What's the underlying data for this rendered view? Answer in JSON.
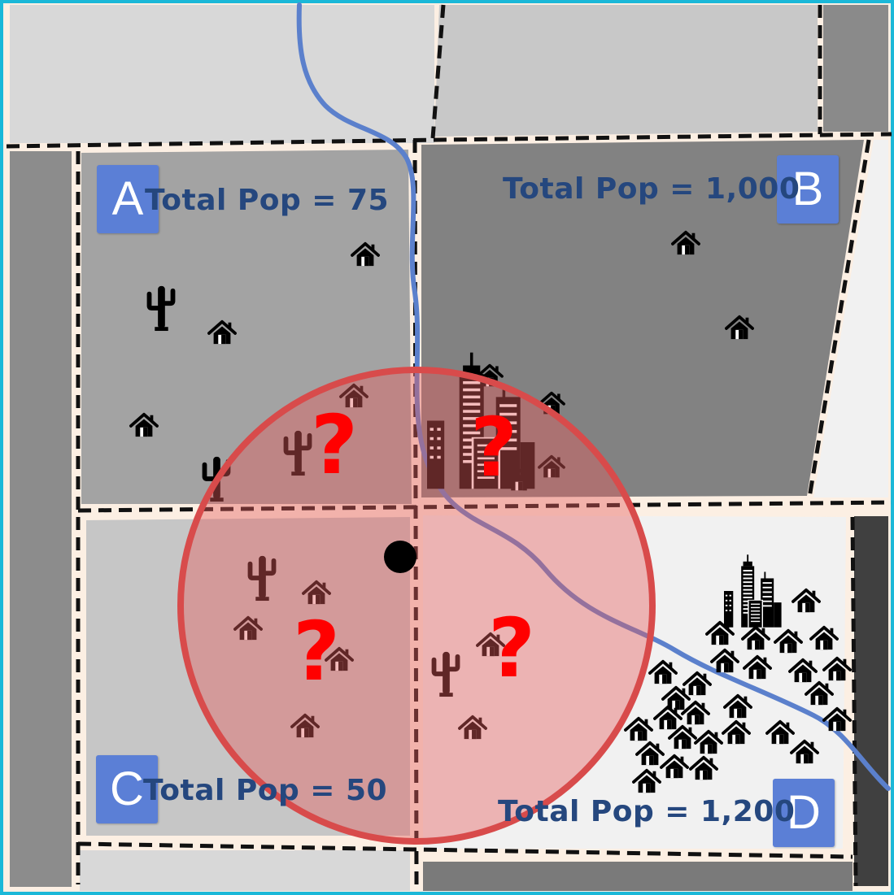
{
  "regions": {
    "A": {
      "letter": "A",
      "population_text": "Total Pop = 75"
    },
    "B": {
      "letter": "B",
      "population_text": "Total Pop = 1,000"
    },
    "C": {
      "letter": "C",
      "population_text": "Total Pop = 50"
    },
    "D": {
      "letter": "D",
      "population_text": "Total Pop = 1,200"
    }
  },
  "unknown_marker": "?",
  "colors": {
    "region_a": "#a3a3a3",
    "region_b": "#828282",
    "region_c": "#c6c6c6",
    "region_d": "#f1f1f1",
    "label_box": "#5b7fd6",
    "population_text": "#25477e",
    "river": "#5b80cc",
    "buffer_fill": "#e55d5d",
    "question_mark": "#ff0000"
  },
  "icons": [
    "house-icon",
    "cactus-icon",
    "city-icon",
    "point-marker-icon"
  ]
}
